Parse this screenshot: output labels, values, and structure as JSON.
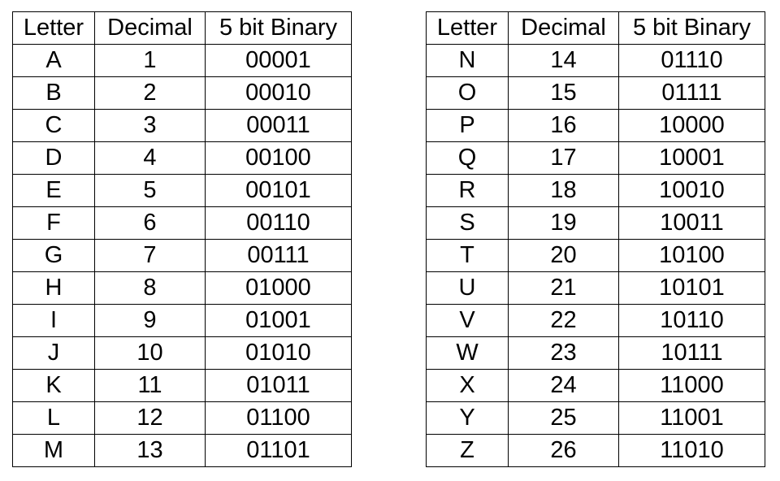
{
  "headers": {
    "letter": "Letter",
    "decimal": "Decimal",
    "binary": "5 bit Binary"
  },
  "tables": [
    {
      "rows": [
        {
          "letter": "A",
          "decimal": "1",
          "binary": "00001"
        },
        {
          "letter": "B",
          "decimal": "2",
          "binary": "00010"
        },
        {
          "letter": "C",
          "decimal": "3",
          "binary": "00011"
        },
        {
          "letter": "D",
          "decimal": "4",
          "binary": "00100"
        },
        {
          "letter": "E",
          "decimal": "5",
          "binary": "00101"
        },
        {
          "letter": "F",
          "decimal": "6",
          "binary": "00110"
        },
        {
          "letter": "G",
          "decimal": "7",
          "binary": "00111"
        },
        {
          "letter": "H",
          "decimal": "8",
          "binary": "01000"
        },
        {
          "letter": "I",
          "decimal": "9",
          "binary": "01001"
        },
        {
          "letter": "J",
          "decimal": "10",
          "binary": "01010"
        },
        {
          "letter": "K",
          "decimal": "11",
          "binary": "01011"
        },
        {
          "letter": "L",
          "decimal": "12",
          "binary": "01100"
        },
        {
          "letter": "M",
          "decimal": "13",
          "binary": "01101"
        }
      ]
    },
    {
      "rows": [
        {
          "letter": "N",
          "decimal": "14",
          "binary": "01110"
        },
        {
          "letter": "O",
          "decimal": "15",
          "binary": "01111"
        },
        {
          "letter": "P",
          "decimal": "16",
          "binary": "10000"
        },
        {
          "letter": "Q",
          "decimal": "17",
          "binary": "10001"
        },
        {
          "letter": "R",
          "decimal": "18",
          "binary": "10010"
        },
        {
          "letter": "S",
          "decimal": "19",
          "binary": "10011"
        },
        {
          "letter": "T",
          "decimal": "20",
          "binary": "10100"
        },
        {
          "letter": "U",
          "decimal": "21",
          "binary": "10101"
        },
        {
          "letter": "V",
          "decimal": "22",
          "binary": "10110"
        },
        {
          "letter": "W",
          "decimal": "23",
          "binary": "10111"
        },
        {
          "letter": "X",
          "decimal": "24",
          "binary": "11000"
        },
        {
          "letter": "Y",
          "decimal": "25",
          "binary": "11001"
        },
        {
          "letter": "Z",
          "decimal": "26",
          "binary": "11010"
        }
      ]
    }
  ]
}
